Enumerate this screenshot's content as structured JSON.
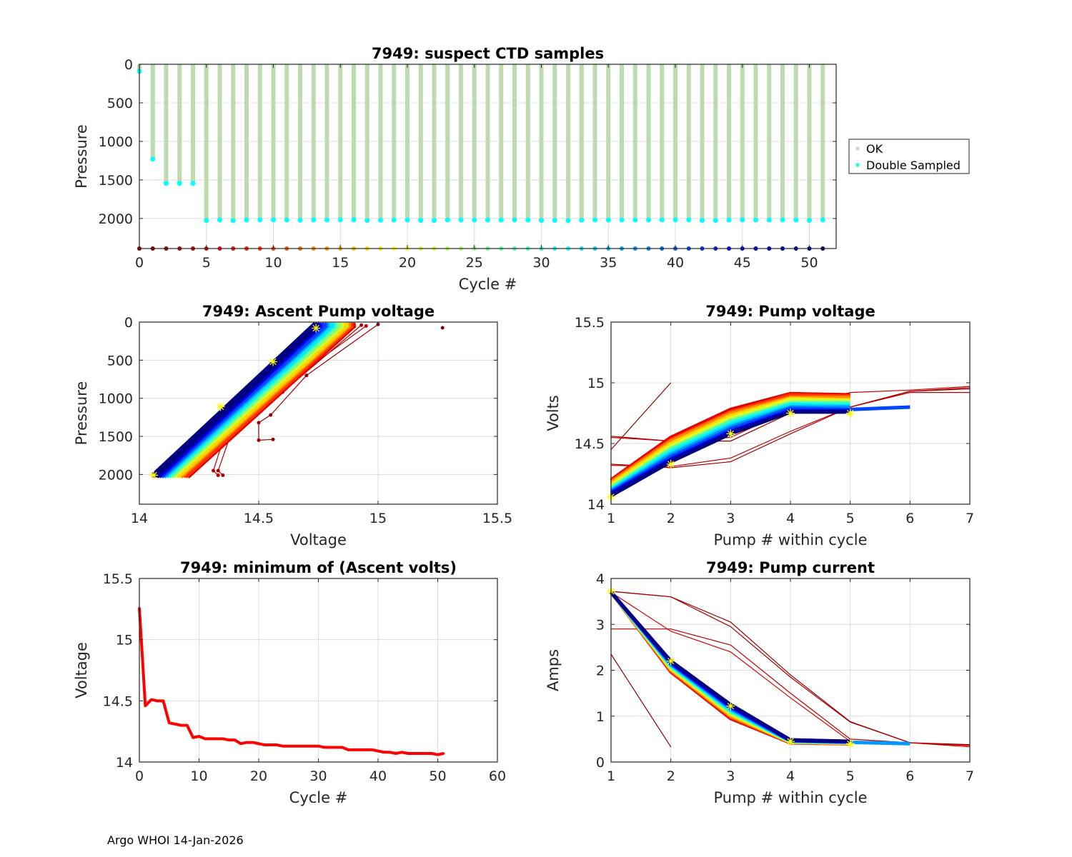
{
  "footer": "Argo WHOI 14-Jan-2026",
  "colors": {
    "ok": "#bcdcb0",
    "double_sampled": "#00ffff",
    "highlight": "#ffff00",
    "grid": "#dcdcdc",
    "axis": "#262626"
  },
  "chart_data": [
    {
      "id": "ctd",
      "type": "scatter",
      "title": "7949: suspect CTD samples",
      "xlabel": "Cycle #",
      "ylabel": "Pressure",
      "xlim": [
        0,
        52
      ],
      "ylim": [
        0,
        2390
      ],
      "y_reversed": true,
      "xticks": [
        0,
        5,
        10,
        15,
        20,
        25,
        30,
        35,
        40,
        45,
        50
      ],
      "yticks": [
        0,
        500,
        1000,
        1500,
        2000
      ],
      "grid": true,
      "legend": {
        "placement": "outside-right",
        "entries": [
          "OK",
          "Double Sampled"
        ]
      },
      "cycles": [
        0,
        1,
        2,
        3,
        4,
        5,
        6,
        7,
        8,
        9,
        10,
        11,
        12,
        13,
        14,
        15,
        16,
        17,
        18,
        19,
        20,
        21,
        22,
        23,
        24,
        25,
        26,
        27,
        28,
        29,
        30,
        31,
        32,
        33,
        34,
        35,
        36,
        37,
        38,
        39,
        40,
        41,
        42,
        43,
        44,
        45,
        46,
        47,
        48,
        49,
        50,
        51
      ],
      "max_pressure": [
        90,
        1230,
        1545,
        1545,
        1545,
        2025,
        2020,
        2028,
        2020,
        2018,
        2018,
        2020,
        2022,
        2018,
        2020,
        2018,
        2016,
        2026,
        2022,
        2020,
        2020,
        2025,
        2025,
        2020,
        2020,
        2020,
        2020,
        2020,
        2018,
        2020,
        2025,
        2025,
        2028,
        2022,
        2018,
        2020,
        2020,
        2020,
        2020,
        2018,
        2018,
        2018,
        2025,
        2025,
        2020,
        2018,
        2020,
        2020,
        2018,
        2020,
        2025,
        2018
      ],
      "marker_pressure": 2390
    },
    {
      "id": "ascent",
      "type": "line",
      "title": "7949: Ascent Pump voltage",
      "xlabel": "Voltage",
      "ylabel": "Pressure",
      "xlim": [
        14,
        15.5
      ],
      "ylim": [
        0,
        2390
      ],
      "y_reversed": true,
      "xticks": [
        14,
        14.5,
        15,
        15.5
      ],
      "yticks": [
        0,
        500,
        1000,
        1500,
        2000
      ],
      "grid": true,
      "series": [
        {
          "cycle": 0,
          "points": [
            [
              15.27,
              75
            ]
          ]
        },
        {
          "cycle": 1,
          "points": [
            [
              15.0,
              30
            ],
            [
              14.7,
              700
            ],
            [
              14.55,
              1220
            ],
            [
              14.5,
              1320
            ],
            [
              14.5,
              1550
            ],
            [
              14.56,
              1540
            ]
          ]
        },
        {
          "cycle": 2,
          "points": [
            [
              14.93,
              40
            ],
            [
              14.6,
              920
            ],
            [
              14.38,
              1500
            ],
            [
              14.33,
              1950
            ],
            [
              14.35,
              2010
            ]
          ]
        },
        {
          "cycle": 3,
          "points": [
            [
              14.95,
              50
            ],
            [
              14.55,
              960
            ],
            [
              14.35,
              1560
            ],
            [
              14.31,
              1950
            ],
            [
              14.33,
              2010
            ]
          ]
        },
        {
          "cycle": 4,
          "points": [
            [
              14.9,
              60
            ],
            [
              14.5,
              1060
            ],
            [
              14.21,
              2010
            ]
          ]
        },
        {
          "cycle": 5,
          "points": [
            [
              14.9,
              30
            ],
            [
              14.2,
              2020
            ]
          ]
        },
        {
          "cycle": 9,
          "points": [
            [
              14.89,
              30
            ],
            [
              14.19,
              2020
            ]
          ]
        },
        {
          "cycle": 13,
          "points": [
            [
              14.88,
              30
            ],
            [
              14.17,
              2020
            ]
          ]
        },
        {
          "cycle": 17,
          "points": [
            [
              14.87,
              30
            ],
            [
              14.16,
              2020
            ]
          ]
        },
        {
          "cycle": 21,
          "points": [
            [
              14.85,
              30
            ],
            [
              14.14,
              2020
            ]
          ]
        },
        {
          "cycle": 25,
          "points": [
            [
              14.84,
              30
            ],
            [
              14.13,
              2020
            ]
          ]
        },
        {
          "cycle": 29,
          "points": [
            [
              14.82,
              30
            ],
            [
              14.12,
              2020
            ]
          ]
        },
        {
          "cycle": 33,
          "points": [
            [
              14.81,
              30
            ],
            [
              14.11,
              2020
            ]
          ]
        },
        {
          "cycle": 37,
          "points": [
            [
              14.79,
              30
            ],
            [
              14.1,
              2020
            ]
          ]
        },
        {
          "cycle": 41,
          "points": [
            [
              14.78,
              30
            ],
            [
              14.09,
              2020
            ]
          ]
        },
        {
          "cycle": 45,
          "points": [
            [
              14.76,
              30
            ],
            [
              14.08,
              2020
            ]
          ]
        },
        {
          "cycle": 49,
          "points": [
            [
              14.75,
              30
            ],
            [
              14.07,
              2020
            ]
          ]
        },
        {
          "cycle": 51,
          "points": [
            [
              14.74,
              30
            ],
            [
              14.06,
              2020
            ]
          ]
        }
      ],
      "highlight_points": [
        [
          14.74,
          80
        ],
        [
          14.56,
          520
        ],
        [
          14.34,
          1110
        ],
        [
          14.06,
          2010
        ]
      ]
    },
    {
      "id": "pumpv",
      "type": "line",
      "title": "7949: Pump voltage",
      "xlabel": "Pump # within cycle",
      "ylabel": "Volts",
      "xlim": [
        1,
        7
      ],
      "ylim": [
        14,
        15.5
      ],
      "xticks": [
        1,
        2,
        3,
        4,
        5,
        6,
        7
      ],
      "yticks": [
        14,
        14.5,
        15,
        15.5
      ],
      "grid": true,
      "series": [
        {
          "cycle": 0,
          "values": [
            14.45,
            15.0
          ]
        },
        {
          "cycle": 1,
          "values": [
            14.56,
            14.52,
            14.52,
            14.75,
            14.8,
            14.93,
            14.95
          ]
        },
        {
          "cycle": 2,
          "values": [
            14.33,
            14.3,
            14.35,
            14.58,
            14.8,
            14.93,
            14.96
          ]
        },
        {
          "cycle": 3,
          "values": [
            14.32,
            14.31,
            14.38,
            14.6,
            14.8,
            14.92,
            14.92
          ]
        },
        {
          "cycle": 4,
          "values": [
            14.55,
            14.52,
            14.55,
            14.78,
            14.92,
            14.94,
            14.97
          ]
        },
        {
          "cycle": 5,
          "values": [
            14.2,
            14.55,
            14.78,
            14.91,
            14.9
          ]
        },
        {
          "cycle": 9,
          "values": [
            14.19,
            14.53,
            14.76,
            14.9,
            14.89
          ]
        },
        {
          "cycle": 13,
          "values": [
            14.18,
            14.52,
            14.75,
            14.88,
            14.88
          ]
        },
        {
          "cycle": 17,
          "values": [
            14.17,
            14.5,
            14.73,
            14.87,
            14.86
          ]
        },
        {
          "cycle": 21,
          "values": [
            14.15,
            14.48,
            14.71,
            14.86,
            14.85
          ]
        },
        {
          "cycle": 25,
          "values": [
            14.14,
            14.46,
            14.69,
            14.84,
            14.84
          ]
        },
        {
          "cycle": 29,
          "values": [
            14.13,
            14.45,
            14.68,
            14.83,
            14.83
          ]
        },
        {
          "cycle": 33,
          "values": [
            14.12,
            14.43,
            14.66,
            14.82,
            14.81
          ]
        },
        {
          "cycle": 37,
          "values": [
            14.11,
            14.41,
            14.64,
            14.8,
            14.8
          ]
        },
        {
          "cycle": 41,
          "values": [
            14.1,
            14.39,
            14.62,
            14.79,
            14.78,
            14.8
          ]
        },
        {
          "cycle": 45,
          "values": [
            14.09,
            14.37,
            14.6,
            14.77,
            14.77
          ]
        },
        {
          "cycle": 49,
          "values": [
            14.08,
            14.36,
            14.59,
            14.76,
            14.76
          ]
        },
        {
          "cycle": 51,
          "values": [
            14.07,
            14.35,
            14.58,
            14.76,
            14.76
          ]
        }
      ],
      "highlight_points": [
        [
          1,
          14.06
        ],
        [
          2,
          14.33
        ],
        [
          3,
          14.58
        ],
        [
          4,
          14.75
        ],
        [
          5,
          14.75
        ]
      ]
    },
    {
      "id": "minv",
      "type": "line",
      "title": "7949: minimum of (Ascent volts)",
      "xlabel": "Cycle #",
      "ylabel": "Voltage",
      "xlim": [
        0,
        60
      ],
      "ylim": [
        14,
        15.5
      ],
      "xticks": [
        0,
        10,
        20,
        30,
        40,
        50,
        60
      ],
      "yticks": [
        14,
        14.5,
        15,
        15.5
      ],
      "grid": true,
      "x": [
        0,
        1,
        2,
        3,
        4,
        5,
        6,
        7,
        8,
        9,
        10,
        11,
        12,
        13,
        14,
        15,
        16,
        17,
        18,
        19,
        20,
        21,
        22,
        23,
        24,
        25,
        26,
        27,
        28,
        29,
        30,
        31,
        32,
        33,
        34,
        35,
        36,
        37,
        38,
        39,
        40,
        41,
        42,
        43,
        44,
        45,
        46,
        47,
        48,
        49,
        50,
        51
      ],
      "values": [
        15.26,
        14.46,
        14.51,
        14.5,
        14.5,
        14.32,
        14.31,
        14.3,
        14.3,
        14.2,
        14.21,
        14.19,
        14.19,
        14.19,
        14.19,
        14.18,
        14.18,
        14.15,
        14.16,
        14.16,
        14.15,
        14.14,
        14.14,
        14.14,
        14.13,
        14.13,
        14.13,
        14.13,
        14.13,
        14.13,
        14.13,
        14.12,
        14.12,
        14.12,
        14.12,
        14.1,
        14.1,
        14.1,
        14.1,
        14.1,
        14.09,
        14.08,
        14.08,
        14.07,
        14.08,
        14.07,
        14.07,
        14.07,
        14.07,
        14.07,
        14.06,
        14.07
      ]
    },
    {
      "id": "pumpi",
      "type": "line",
      "title": "7949: Pump current",
      "xlabel": "Pump # within cycle",
      "ylabel": "Amps",
      "xlim": [
        1,
        7
      ],
      "ylim": [
        0,
        4
      ],
      "xticks": [
        1,
        2,
        3,
        4,
        5,
        6,
        7
      ],
      "yticks": [
        0,
        1,
        2,
        3,
        4
      ],
      "grid": true,
      "series": [
        {
          "cycle": 0,
          "values": [
            2.35,
            0.33
          ]
        },
        {
          "cycle": 1,
          "values": [
            3.72,
            3.6,
            3.05,
            1.9,
            0.88,
            0.42,
            0.38
          ]
        },
        {
          "cycle": 2,
          "values": [
            3.72,
            3.6,
            2.95,
            1.85,
            0.87,
            0.42,
            0.36
          ]
        },
        {
          "cycle": 3,
          "values": [
            2.9,
            2.9,
            2.55,
            1.5,
            0.5,
            0.42,
            0.36
          ]
        },
        {
          "cycle": 4,
          "values": [
            3.7,
            2.85,
            2.4,
            1.4,
            0.45,
            0.42,
            0.33
          ]
        },
        {
          "cycle": 5,
          "values": [
            3.7,
            1.97,
            0.95,
            0.42,
            0.4
          ]
        },
        {
          "cycle": 9,
          "values": [
            3.7,
            1.99,
            0.98,
            0.43,
            0.4
          ]
        },
        {
          "cycle": 13,
          "values": [
            3.7,
            2.01,
            1.0,
            0.43,
            0.41
          ]
        },
        {
          "cycle": 17,
          "values": [
            3.7,
            2.03,
            1.03,
            0.44,
            0.41
          ]
        },
        {
          "cycle": 21,
          "values": [
            3.7,
            2.05,
            1.06,
            0.44,
            0.42
          ]
        },
        {
          "cycle": 25,
          "values": [
            3.7,
            2.07,
            1.08,
            0.45,
            0.42
          ]
        },
        {
          "cycle": 29,
          "values": [
            3.7,
            2.09,
            1.11,
            0.45,
            0.43
          ]
        },
        {
          "cycle": 33,
          "values": [
            3.7,
            2.11,
            1.13,
            0.46,
            0.43
          ]
        },
        {
          "cycle": 37,
          "values": [
            3.7,
            2.13,
            1.16,
            0.46,
            0.43,
            0.4
          ]
        },
        {
          "cycle": 41,
          "values": [
            3.7,
            2.15,
            1.19,
            0.47,
            0.44
          ]
        },
        {
          "cycle": 45,
          "values": [
            3.7,
            2.17,
            1.21,
            0.47,
            0.44
          ]
        },
        {
          "cycle": 49,
          "values": [
            3.7,
            2.19,
            1.24,
            0.48,
            0.45
          ]
        },
        {
          "cycle": 51,
          "values": [
            3.7,
            2.2,
            1.25,
            0.48,
            0.45
          ]
        }
      ],
      "highlight_points": [
        [
          1,
          3.72
        ],
        [
          2,
          2.2
        ],
        [
          3,
          1.22
        ],
        [
          4,
          0.45
        ],
        [
          5,
          0.4
        ]
      ]
    }
  ]
}
